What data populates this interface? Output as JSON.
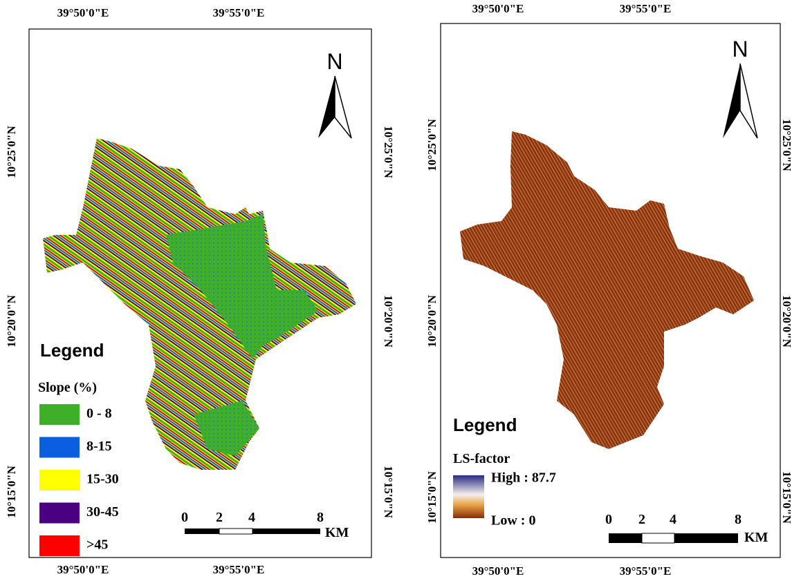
{
  "panels": [
    {
      "top_labels": [
        "39°50'0\"E",
        "39°55'0\"E"
      ],
      "bottom_labels": [
        "39°50'0\"E",
        "39°55'0\"E"
      ],
      "left_labels": [
        "10°25'0\"N",
        "10°20'0\"N",
        "10°15'0\"N"
      ],
      "right_labels": [
        "10°25'0\"N",
        "10°20'0\"N",
        "10°15'0\"N"
      ],
      "north": "N",
      "legend": {
        "title": "Legend",
        "subtitle": "Slope (%)",
        "items": [
          {
            "label": "0 - 8",
            "color": "#3fae29"
          },
          {
            "label": "8-15",
            "color": "#0a5fe0"
          },
          {
            "label": "15-30",
            "color": "#ffff00"
          },
          {
            "label": "30-45",
            "color": "#4b0082"
          },
          {
            "label": ">45",
            "color": "#ff0000"
          }
        ]
      },
      "scale": {
        "labels": [
          "0",
          "2",
          "4",
          "8"
        ],
        "unit": "KM"
      }
    },
    {
      "top_labels": [
        "39°50'0\"E",
        "39°55'0\"E"
      ],
      "bottom_labels": [
        "39°50'0\"E",
        "39°55'0\"E"
      ],
      "left_labels": [
        "10°25'0\"N",
        "10°20'0\"N",
        "10°15'0\"N"
      ],
      "right_labels": [
        "10°25'0\"N",
        "10°20'0\"N",
        "10°15'0\"N"
      ],
      "north": "N",
      "legend": {
        "title": "Legend",
        "subtitle": "LS-factor",
        "high": "High : 87.7",
        "low": "Low : 0"
      },
      "scale": {
        "labels": [
          "0",
          "2",
          "4",
          "8"
        ],
        "unit": "KM"
      }
    }
  ]
}
